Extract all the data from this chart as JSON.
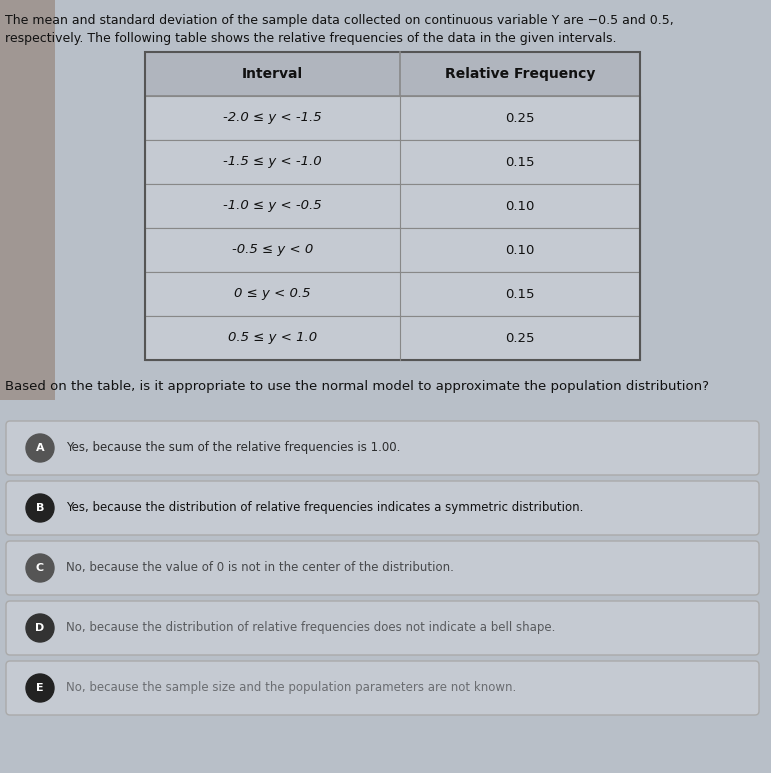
{
  "header_text_line1": "The mean and standard deviation of the sample data collected on continuous variable Y are −0.5 and 0.5,",
  "header_text_line2": "respectively. The following table shows the relative frequencies of the data in the given intervals.",
  "table_headers": [
    "Interval",
    "Relative Frequency"
  ],
  "table_rows": [
    [
      "-2.0 ≤ y < -1.5",
      "0.25"
    ],
    [
      "-1.5 ≤ y < -1.0",
      "0.15"
    ],
    [
      "-1.0 ≤ y < -0.5",
      "0.10"
    ],
    [
      "-0.5 ≤ y < 0",
      "0.10"
    ],
    [
      "0 ≤ y < 0.5",
      "0.15"
    ],
    [
      "0.5 ≤ y < 1.0",
      "0.25"
    ]
  ],
  "question": "Based on the table, is it appropriate to use the normal model to approximate the population distribution?",
  "choices": [
    {
      "letter": "A",
      "text": "Yes, because the sum of the relative frequencies is 1.00."
    },
    {
      "letter": "B",
      "text": "Yes, because the distribution of relative frequencies indicates a symmetric distribution."
    },
    {
      "letter": "C",
      "text": "No, because the value of 0 is not in the center of the distribution."
    },
    {
      "letter": "D",
      "text": "No, because the distribution of relative frequencies does not indicate a bell shape."
    },
    {
      "letter": "E",
      "text": "No, because the sample size and the population parameters are not known."
    }
  ],
  "bg_color": "#b8bfc8",
  "table_cell_bg": "#c5cad2",
  "table_header_bg": "#b0b5be",
  "table_border": "#888888",
  "choice_bg": "#c5cad2",
  "choice_border": "#aaaaaa",
  "text_color": "#111111",
  "circle_colors": [
    "#555555",
    "#222222",
    "#555555",
    "#333333",
    "#222222"
  ],
  "choice_text_alphas": [
    0.85,
    1.0,
    0.7,
    0.6,
    0.5
  ],
  "fig_width": 7.71,
  "fig_height": 7.73
}
